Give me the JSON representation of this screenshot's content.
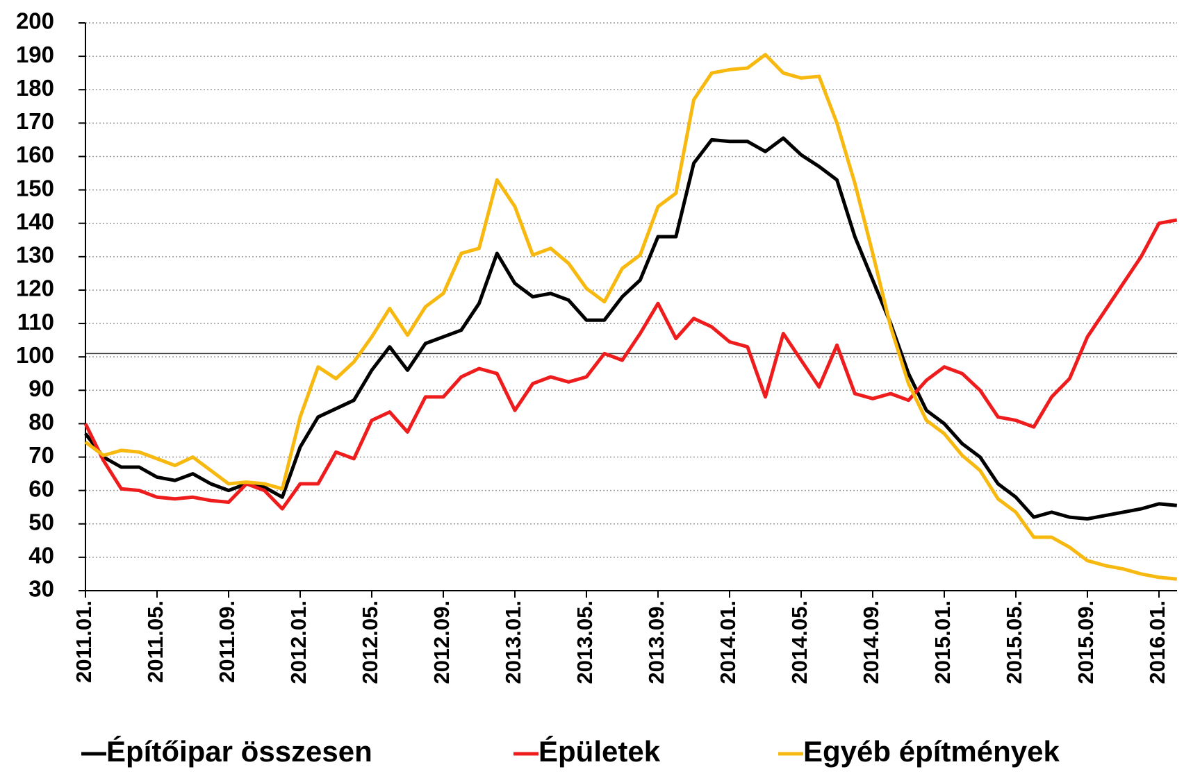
{
  "chart_data": {
    "type": "line",
    "categories": [
      "2011.01.",
      null,
      null,
      null,
      "2011.05.",
      null,
      null,
      null,
      "2011.09.",
      null,
      null,
      null,
      "2012.01.",
      null,
      null,
      null,
      "2012.05.",
      null,
      null,
      null,
      "2012.09.",
      null,
      null,
      null,
      "2013.01.",
      null,
      null,
      null,
      "2013.05.",
      null,
      null,
      null,
      "2013.09.",
      null,
      null,
      null,
      "2014.01.",
      null,
      null,
      null,
      "2014.05.",
      null,
      null,
      null,
      "2014.09.",
      null,
      null,
      null,
      "2015.01.",
      null,
      null,
      null,
      "2015.05.",
      null,
      null,
      null,
      "2015.09.",
      null,
      null,
      null,
      "2016.01.",
      null
    ],
    "series": [
      {
        "name": "Építőipar összesen",
        "color": "#000000",
        "values": [
          77,
          70,
          67,
          67,
          64,
          63,
          65,
          62,
          60,
          62,
          61,
          58,
          73,
          82,
          84.5,
          87,
          96,
          103,
          96,
          104,
          106,
          108,
          116,
          131,
          122,
          118,
          119,
          117,
          111,
          111,
          118,
          123,
          136,
          136,
          158,
          165,
          164.5,
          164.5,
          161.5,
          165.5,
          160.5,
          157,
          153,
          136,
          123,
          110,
          95,
          84,
          80,
          74,
          70,
          62,
          58,
          52,
          53.5,
          52,
          51.5,
          52.5,
          53.5,
          54.5,
          56,
          55.5
        ]
      },
      {
        "name": "Épületek",
        "color": "#ee1c1c",
        "values": [
          80,
          69,
          60.5,
          60,
          58,
          57.5,
          58,
          57,
          56.5,
          62,
          60,
          54.5,
          62,
          62,
          71.5,
          69.5,
          81,
          83.5,
          77.5,
          88,
          88,
          94,
          96.5,
          95,
          84,
          92,
          94,
          92.5,
          94,
          101,
          99,
          107,
          116,
          105.5,
          111.5,
          109,
          104.5,
          103,
          88,
          107,
          99,
          91,
          103.5,
          89,
          87.5,
          89,
          87,
          93,
          97,
          95,
          90,
          82,
          81,
          79,
          88,
          93.5,
          106,
          114,
          122,
          130,
          140,
          141
        ]
      },
      {
        "name": "Egyéb építmények",
        "color": "#f7b90f",
        "values": [
          74.5,
          70.5,
          72,
          71.5,
          69.5,
          67.5,
          70,
          66,
          62,
          62.5,
          62,
          60.5,
          82,
          97,
          93.5,
          98.5,
          106,
          114.5,
          106.5,
          115,
          119,
          131,
          132.5,
          153,
          145,
          130.5,
          132.5,
          128,
          120.5,
          116.5,
          126.5,
          130.5,
          145,
          149,
          177,
          185,
          186,
          186.5,
          190.5,
          185,
          183.5,
          184,
          170,
          152,
          131,
          109,
          92,
          81,
          77,
          70.5,
          66,
          57.5,
          53.5,
          46,
          46,
          43,
          39,
          37.5,
          36.5,
          35,
          34,
          33.5
        ]
      }
    ],
    "ylim": [
      30,
      200
    ],
    "yticks": [
      30,
      40,
      50,
      60,
      70,
      80,
      90,
      100,
      110,
      120,
      130,
      140,
      150,
      160,
      170,
      180,
      190,
      200
    ],
    "reference_line": 101,
    "grid": true,
    "legend": "bottom"
  }
}
